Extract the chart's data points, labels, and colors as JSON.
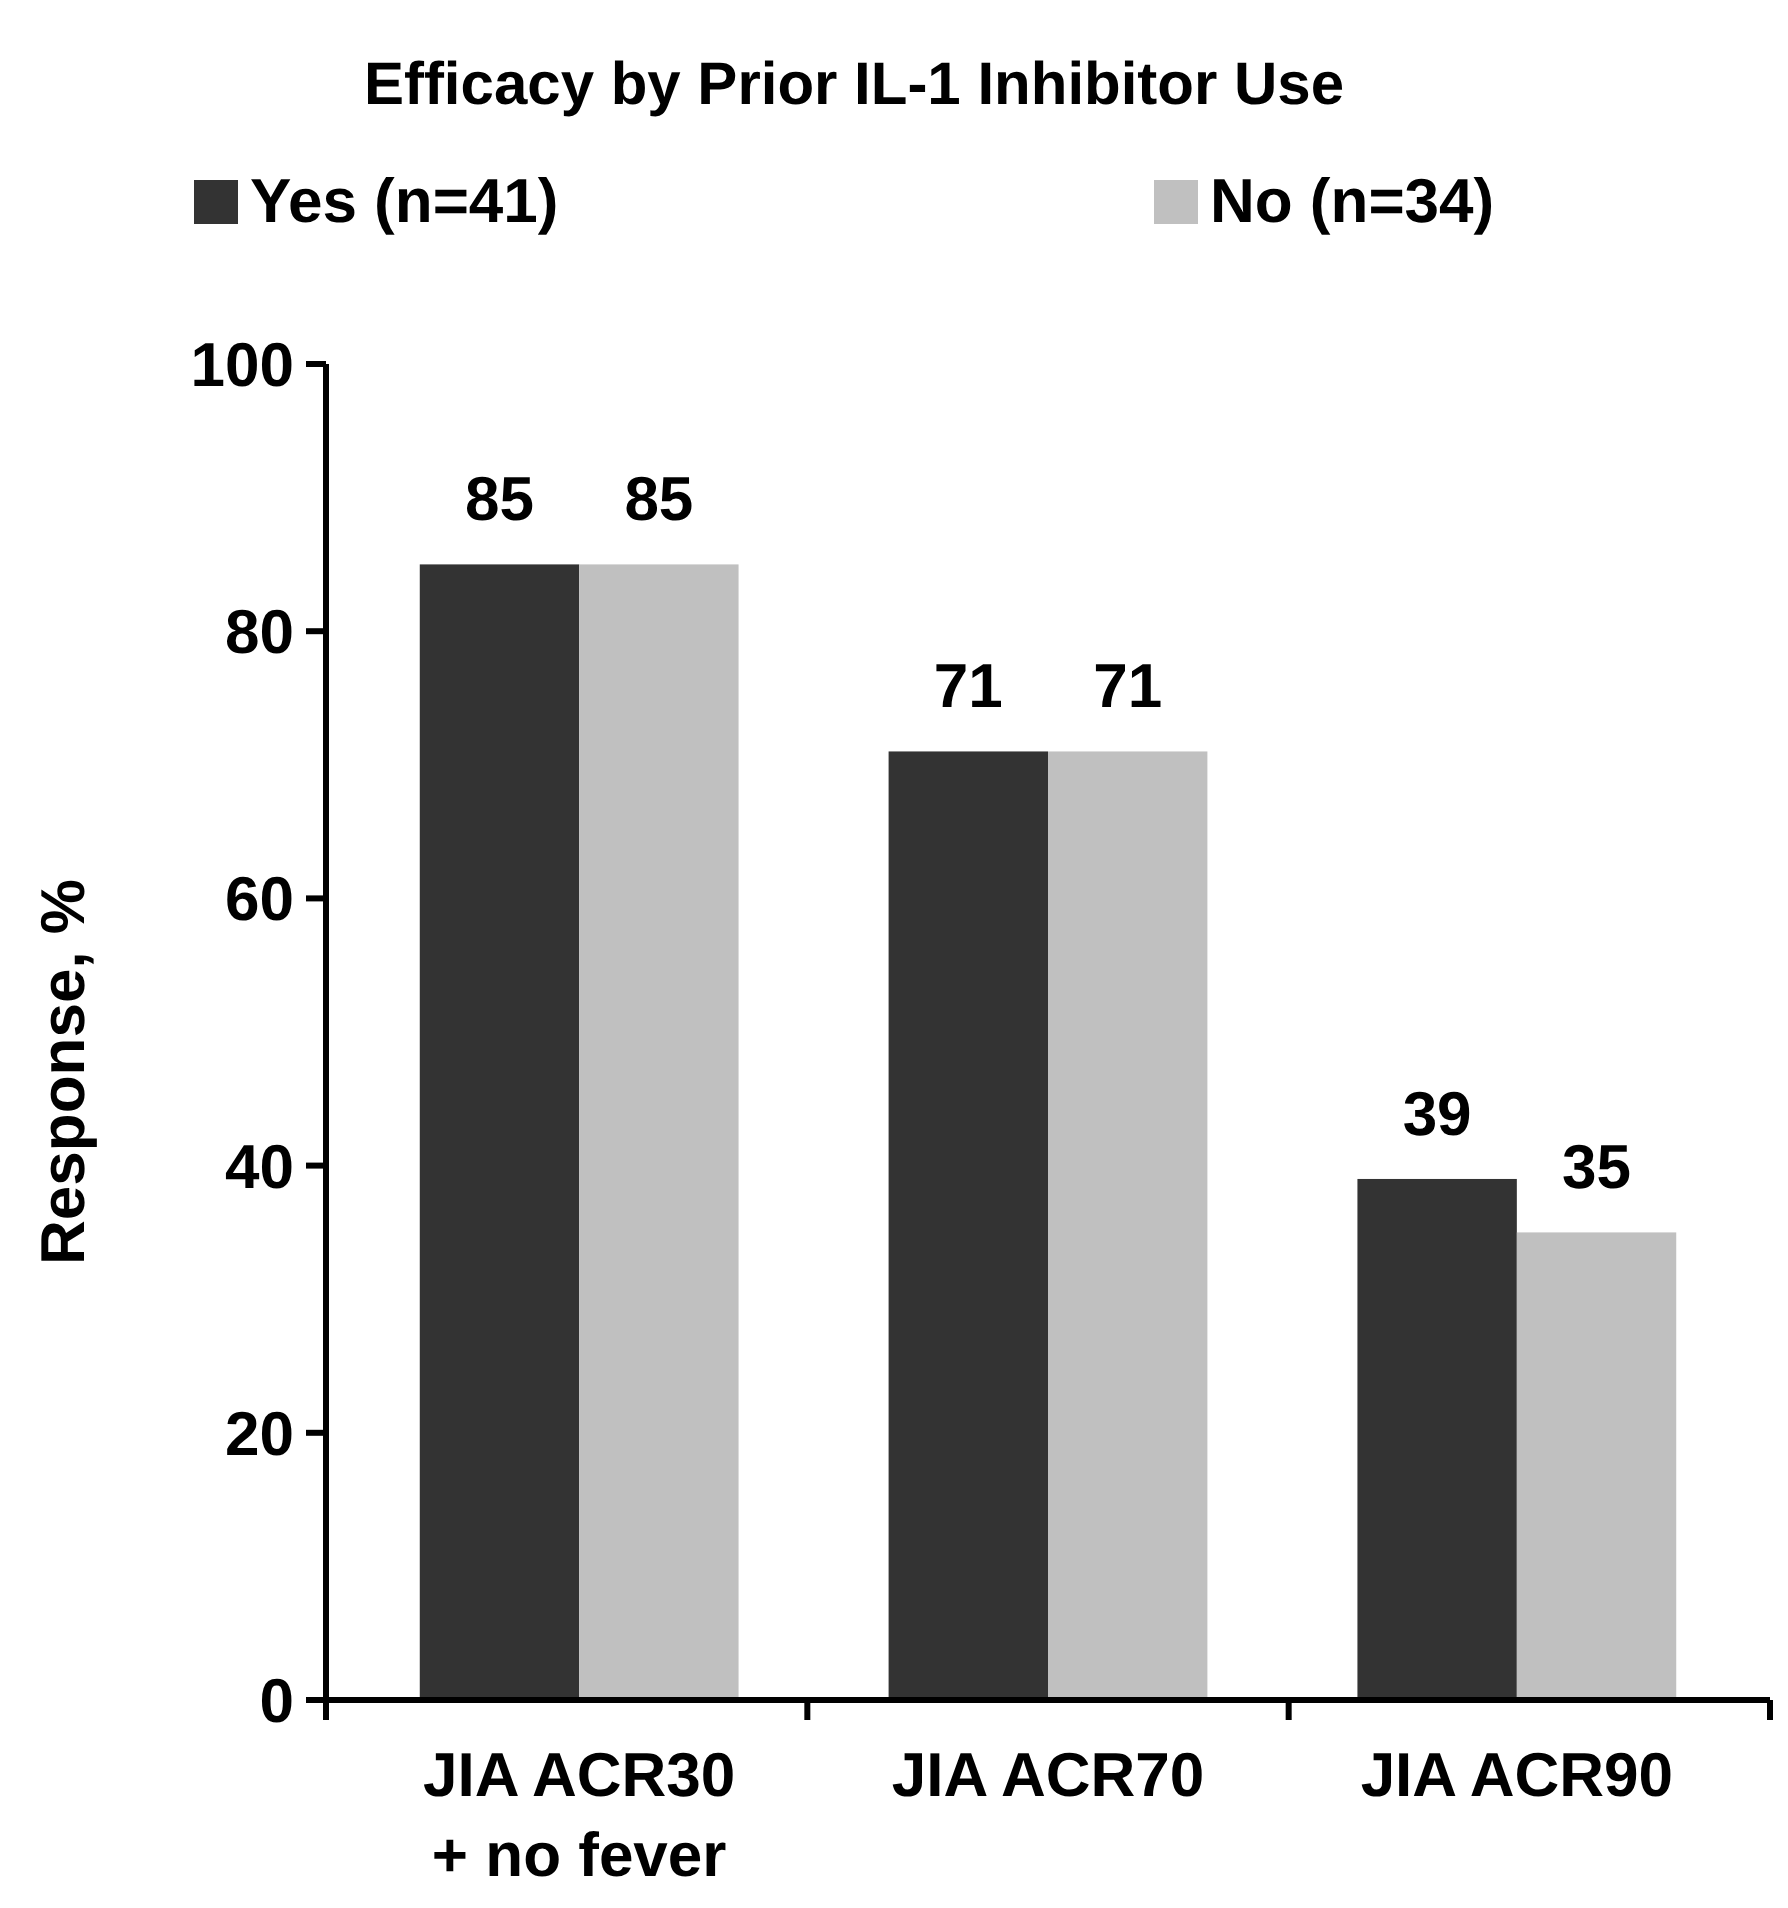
{
  "chart_data": {
    "type": "bar",
    "title": "Efficacy by Prior IL-1 Inhibitor Use",
    "ylabel": "Response, %",
    "categories": [
      "JIA ACR30\n+ no fever",
      "JIA ACR70",
      "JIA ACR90"
    ],
    "series": [
      {
        "name": "Yes (n=41)",
        "color": "#333333",
        "values": [
          85,
          71,
          39
        ]
      },
      {
        "name": "No (n=34)",
        "color": "#c0c0c0",
        "values": [
          85,
          71,
          35
        ]
      }
    ],
    "ylim": [
      0,
      100
    ],
    "yticks": [
      0,
      20,
      40,
      60,
      80,
      100
    ],
    "data_labels": true,
    "legend": "top",
    "grid": false
  }
}
